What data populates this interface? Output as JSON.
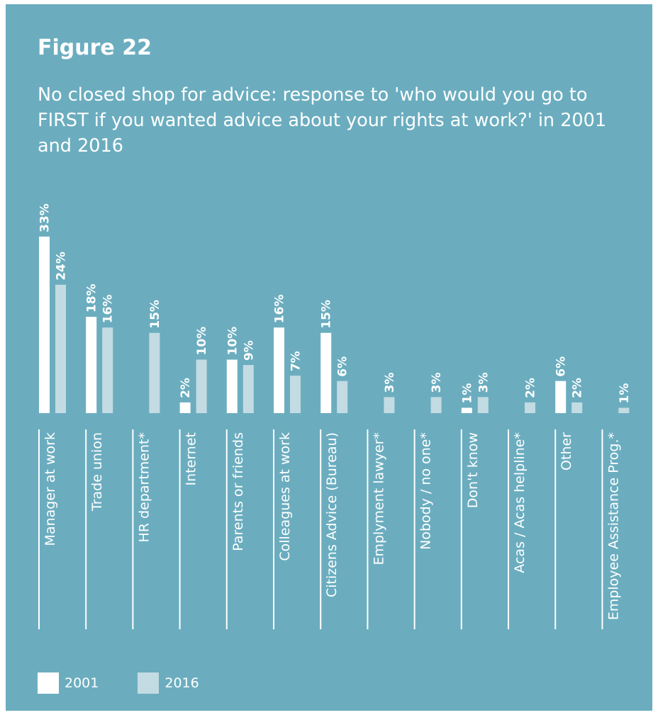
{
  "figure_label": "Figure 22",
  "subtitle": "No closed shop for advice: response to 'who would you go to FIRST if you wanted advice about your rights at work?' in 2001 and 2016",
  "colors": {
    "background": "#6badbf",
    "series_2001": "#ffffff",
    "series_2016": "#c3dbe3",
    "text": "#ffffff"
  },
  "legend": [
    {
      "label": "2001",
      "color": "#ffffff"
    },
    {
      "label": "2016",
      "color": "#c3dbe3"
    }
  ],
  "chart_data": {
    "type": "bar",
    "orientation": "vertical",
    "title": "Figure 22",
    "subtitle": "No closed shop for advice: response to 'who would you go to FIRST if you wanted advice about your rights at work?' in 2001 and 2016",
    "categories": [
      "Manager at work",
      "Trade union",
      "HR department*",
      "Internet",
      "Parents or friends",
      "Colleagues at work",
      "Citizens Advice (Bureau)",
      "Emplyment lawyer*",
      "Nobody / no one*",
      "Don't know",
      "Acas / Acas helpline*",
      "Other",
      "Employee Assistance Prog.*"
    ],
    "series": [
      {
        "name": "2001",
        "values": [
          33,
          18,
          null,
          2,
          10,
          16,
          15,
          null,
          null,
          1,
          null,
          6,
          null
        ]
      },
      {
        "name": "2016",
        "values": [
          24,
          16,
          15,
          10,
          9,
          7,
          6,
          3,
          3,
          3,
          2,
          2,
          1
        ]
      }
    ],
    "value_suffix": "%",
    "ylim": [
      0,
      33
    ],
    "grid": false,
    "legend_position": "bottom-left"
  }
}
